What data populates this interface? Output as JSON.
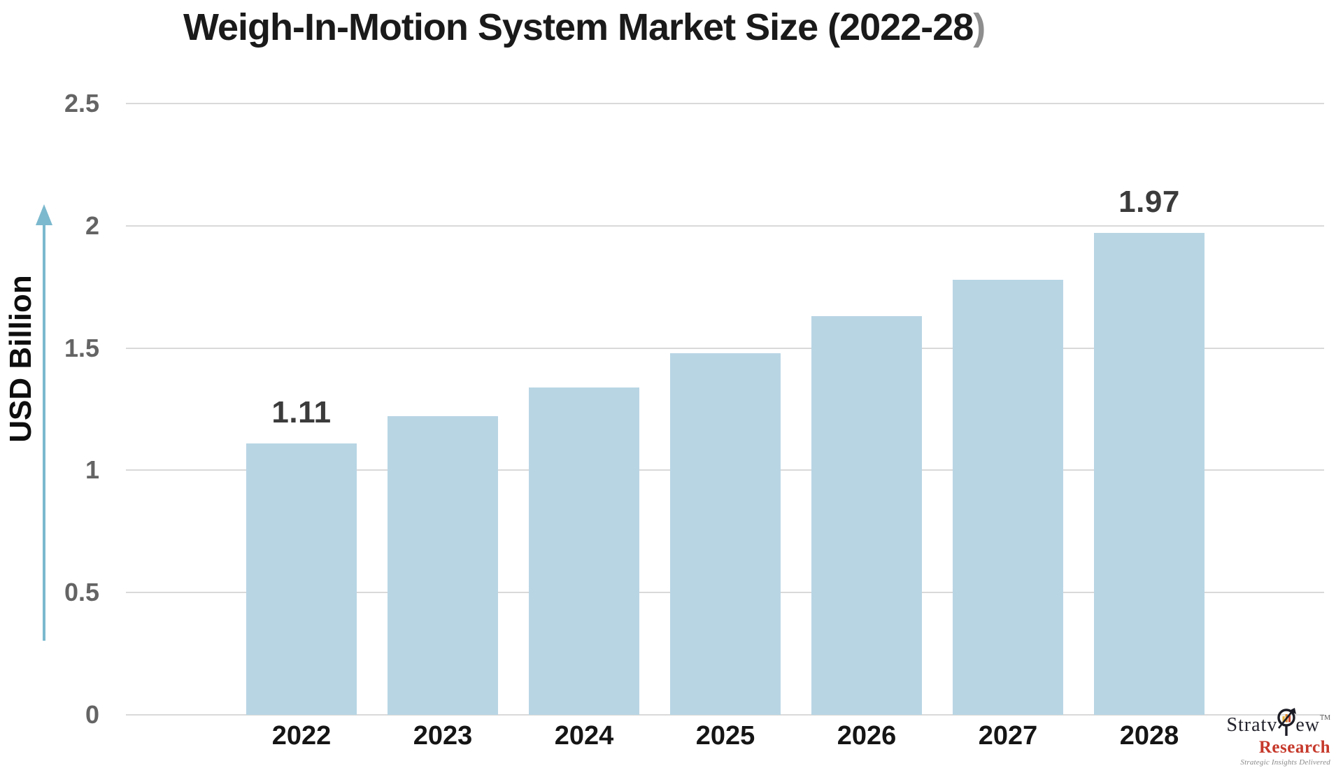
{
  "title": {
    "main": "Weigh-In-Motion System Market Size (2022-28",
    "suffix": ")"
  },
  "chart_data": {
    "type": "bar",
    "title": "Weigh-In-Motion System Market Size (2022-28)",
    "xlabel": "",
    "ylabel": "USD Billion",
    "categories": [
      "2022",
      "2023",
      "2024",
      "2025",
      "2026",
      "2027",
      "2028"
    ],
    "values": [
      1.11,
      1.22,
      1.34,
      1.48,
      1.63,
      1.78,
      1.97
    ],
    "value_labels_shown": [
      "1.11",
      "",
      "",
      "",
      "",
      "",
      "1.97"
    ],
    "yticks": [
      0,
      0.5,
      1,
      1.5,
      2,
      2.5
    ],
    "ytick_labels": [
      "0",
      "0.5",
      "1",
      "1.5",
      "2",
      "2.5"
    ],
    "ylim": [
      0,
      2.5
    ],
    "grid": "horizontal-only",
    "legend": "none",
    "bar_color": "#b8d5e4"
  },
  "colors": {
    "background": "#ffffff",
    "bar_fill": "#b8d5e4",
    "gridline": "#d9d9d9",
    "title_text": "#1a1a1a",
    "title_suffix": "#8e8e8e",
    "tick_label": "#646464",
    "x_label": "#151515",
    "value_label": "#3b3b3b",
    "axis_arrow": "#7cb9ce",
    "logo_ink": "#23232e",
    "logo_research": "#c6392b",
    "logo_tagline": "#8a8a8a"
  },
  "logo": {
    "word_part1": "Stratv",
    "word_part2": "ew",
    "trademark": "TM",
    "word2": "Research",
    "tagline": "Strategic Insights Delivered"
  }
}
